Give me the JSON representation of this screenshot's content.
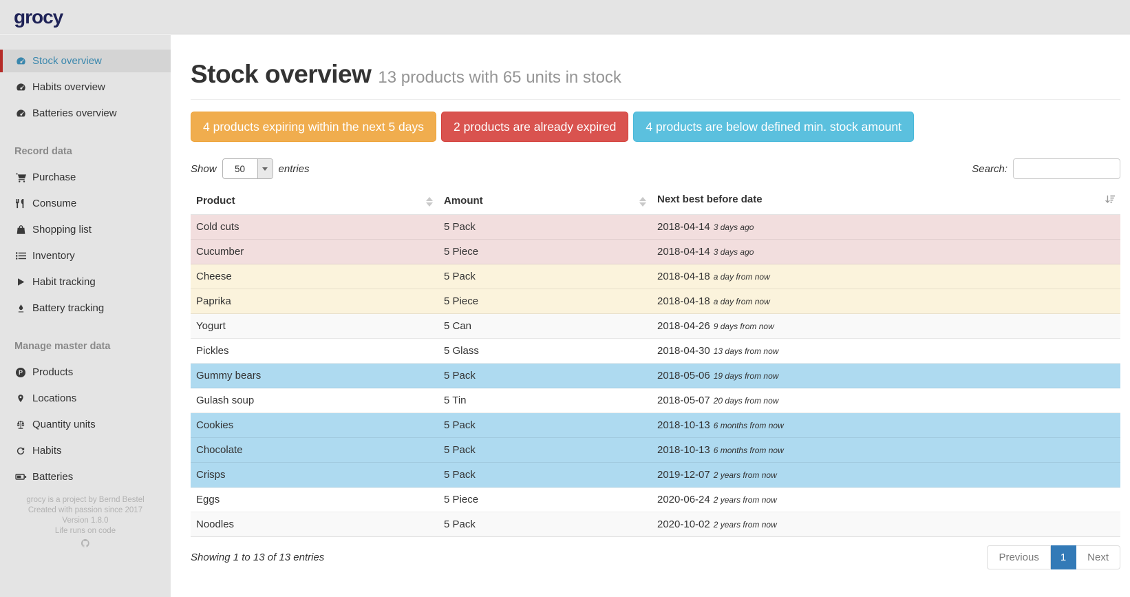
{
  "brand": {
    "logo_text": "grocy"
  },
  "colors": {
    "warning": "#f0ad4e",
    "danger": "#d9534f",
    "info": "#5bc0de",
    "sidebar_active_text": "#3a87ad",
    "sidebar_active_marker": "#b52b27",
    "pagination_active": "#337ab7",
    "row_expired": "#f2dede",
    "row_expiring": "#fbf3dc",
    "row_below_min": "#aedaf0"
  },
  "sidebar": {
    "main_items": [
      {
        "label": "Stock overview",
        "icon": "tachometer-icon",
        "active": true
      },
      {
        "label": "Habits overview",
        "icon": "tachometer-icon",
        "active": false
      },
      {
        "label": "Batteries overview",
        "icon": "tachometer-icon",
        "active": false
      }
    ],
    "sections": [
      {
        "header": "Record data",
        "items": [
          {
            "label": "Purchase",
            "icon": "shopping-cart-icon"
          },
          {
            "label": "Consume",
            "icon": "utensils-icon"
          },
          {
            "label": "Shopping list",
            "icon": "shopping-bag-icon"
          },
          {
            "label": "Inventory",
            "icon": "list-icon"
          },
          {
            "label": "Habit tracking",
            "icon": "play-icon"
          },
          {
            "label": "Battery tracking",
            "icon": "pen-icon"
          }
        ]
      },
      {
        "header": "Manage master data",
        "items": [
          {
            "label": "Products",
            "icon": "product-circle-icon"
          },
          {
            "label": "Locations",
            "icon": "map-marker-icon"
          },
          {
            "label": "Quantity units",
            "icon": "balance-scale-icon"
          },
          {
            "label": "Habits",
            "icon": "refresh-icon"
          },
          {
            "label": "Batteries",
            "icon": "battery-icon"
          }
        ]
      }
    ],
    "footer_lines": [
      "grocy is a project by Bernd Bestel",
      "Created with passion since 2017",
      "Version 1.8.0",
      "Life runs on code"
    ],
    "footer_icon": "github-icon"
  },
  "page": {
    "title": "Stock overview",
    "subtitle": "13 products with 65 units in stock"
  },
  "alerts": [
    {
      "label": "4 products expiring within the next 5 days",
      "type": "warning"
    },
    {
      "label": "2 products are already expired",
      "type": "danger"
    },
    {
      "label": "4 products are below defined min. stock amount",
      "type": "info"
    }
  ],
  "table_controls": {
    "show_label": "Show",
    "page_size": "50",
    "entries_label": "entries",
    "search_label": "Search:",
    "search_value": ""
  },
  "table": {
    "columns": [
      {
        "label": "Product"
      },
      {
        "label": "Amount"
      },
      {
        "label": "Next best before date"
      }
    ],
    "rows": [
      {
        "product": "Cold cuts",
        "amount": "5 Pack",
        "date": "2018-04-14",
        "note": "3 days ago",
        "variant": "danger"
      },
      {
        "product": "Cucumber",
        "amount": "5 Piece",
        "date": "2018-04-14",
        "note": "3 days ago",
        "variant": "danger"
      },
      {
        "product": "Cheese",
        "amount": "5 Pack",
        "date": "2018-04-18",
        "note": "a day from now",
        "variant": "warning"
      },
      {
        "product": "Paprika",
        "amount": "5 Piece",
        "date": "2018-04-18",
        "note": "a day from now",
        "variant": "warning"
      },
      {
        "product": "Yogurt",
        "amount": "5 Can",
        "date": "2018-04-26",
        "note": "9 days from now",
        "variant": "odd"
      },
      {
        "product": "Pickles",
        "amount": "5 Glass",
        "date": "2018-04-30",
        "note": "13 days from now",
        "variant": "even"
      },
      {
        "product": "Gummy bears",
        "amount": "5 Pack",
        "date": "2018-05-06",
        "note": "19 days from now",
        "variant": "info"
      },
      {
        "product": "Gulash soup",
        "amount": "5 Tin",
        "date": "2018-05-07",
        "note": "20 days from now",
        "variant": "even"
      },
      {
        "product": "Cookies",
        "amount": "5 Pack",
        "date": "2018-10-13",
        "note": "6 months from now",
        "variant": "info"
      },
      {
        "product": "Chocolate",
        "amount": "5 Pack",
        "date": "2018-10-13",
        "note": "6 months from now",
        "variant": "info"
      },
      {
        "product": "Crisps",
        "amount": "5 Pack",
        "date": "2019-12-07",
        "note": "2 years from now",
        "variant": "info"
      },
      {
        "product": "Eggs",
        "amount": "5 Piece",
        "date": "2020-06-24",
        "note": "2 years from now",
        "variant": "even"
      },
      {
        "product": "Noodles",
        "amount": "5 Pack",
        "date": "2020-10-02",
        "note": "2 years from now",
        "variant": "odd"
      }
    ]
  },
  "table_footer": {
    "summary": "Showing 1 to 13 of 13 entries",
    "pagination": [
      "Previous",
      "1",
      "Next"
    ],
    "active_page": "1"
  }
}
